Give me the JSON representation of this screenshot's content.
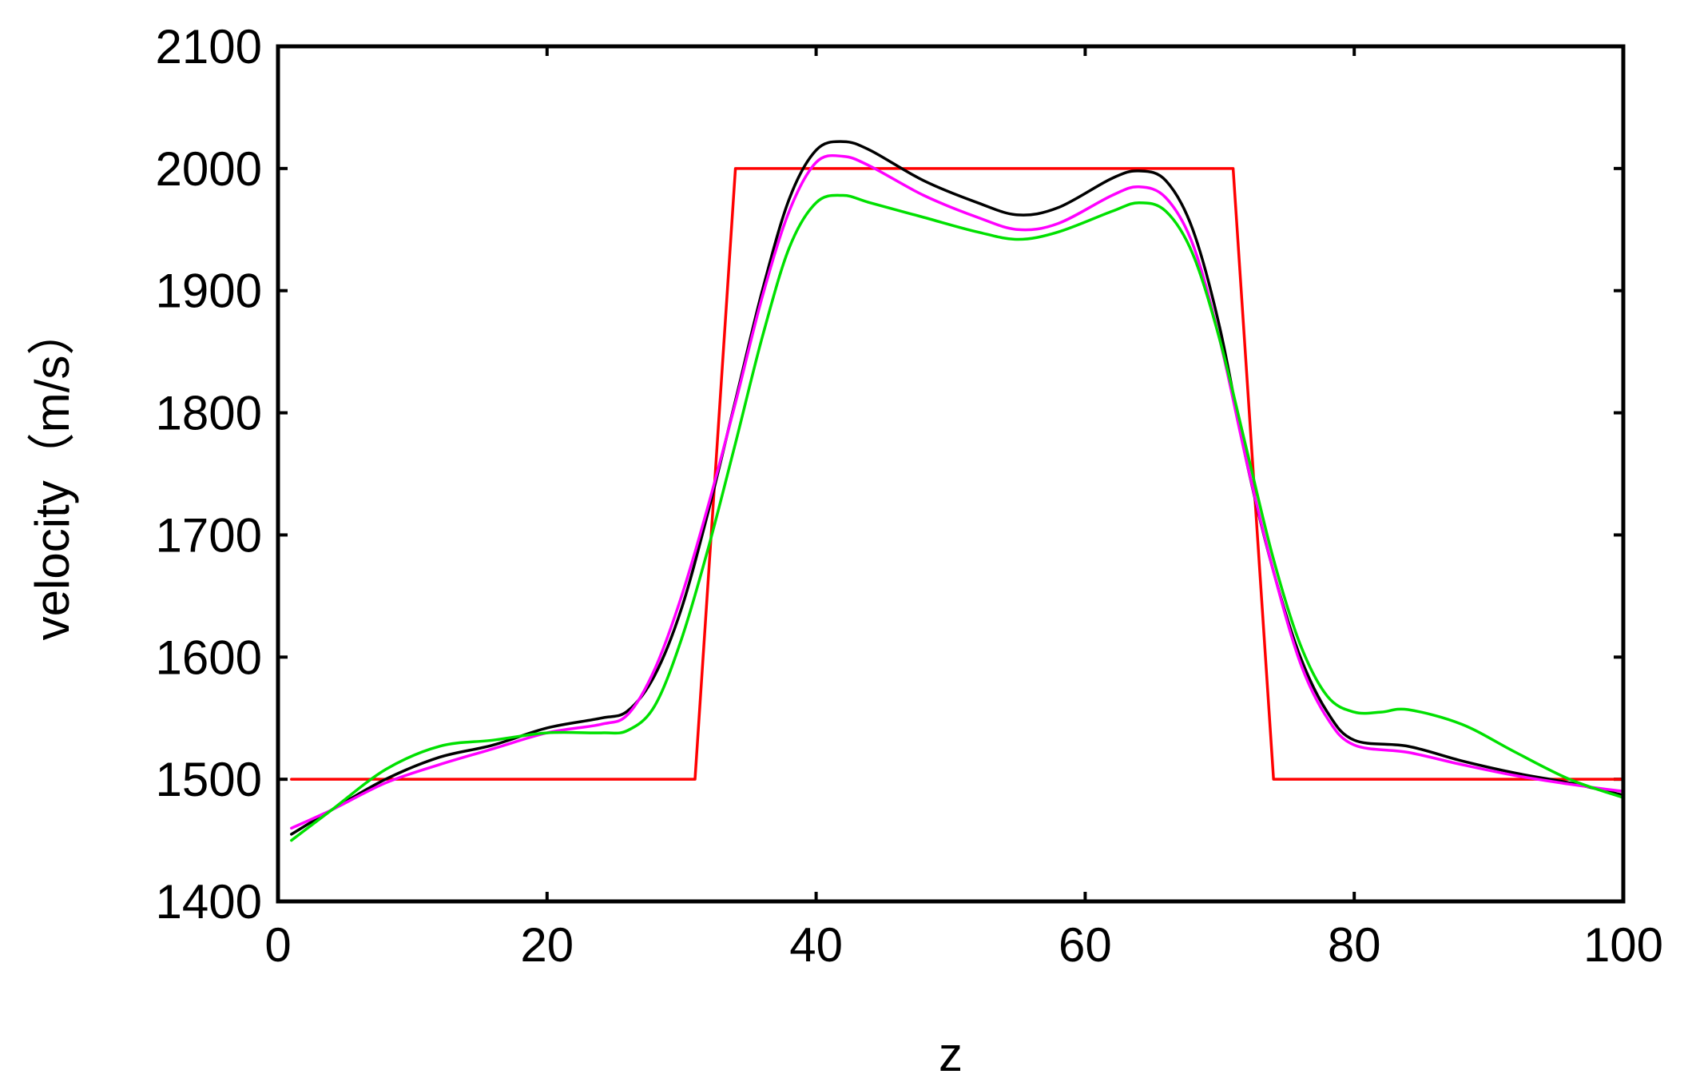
{
  "chart_data": {
    "type": "line",
    "title": "",
    "xlabel": "z",
    "ylabel": "velocity（m/s）",
    "xlim": [
      0,
      100
    ],
    "ylim": [
      1400,
      2100
    ],
    "xticks": [
      0,
      20,
      40,
      60,
      80,
      100
    ],
    "yticks": [
      1400,
      1500,
      1600,
      1700,
      1800,
      1900,
      2000,
      2100
    ],
    "grid": false,
    "legend": "none",
    "series": [
      {
        "color": "#ff0000",
        "x": [
          1,
          31,
          34,
          71,
          74,
          100
        ],
        "y": [
          1500,
          1500,
          2000,
          2000,
          1500,
          1500
        ]
      },
      {
        "color": "#000000",
        "x": [
          1,
          4,
          8,
          12,
          16,
          20,
          24,
          26,
          28,
          30,
          32,
          34,
          36,
          38,
          40,
          42,
          44,
          48,
          52,
          55,
          58,
          62,
          64,
          66,
          68,
          70,
          72,
          74,
          76,
          78,
          80,
          84,
          88,
          92,
          96,
          100
        ],
        "y": [
          1455,
          1475,
          1500,
          1518,
          1528,
          1542,
          1550,
          1556,
          1585,
          1640,
          1720,
          1810,
          1900,
          1975,
          2015,
          2022,
          2015,
          1990,
          1972,
          1962,
          1968,
          1992,
          1998,
          1990,
          1950,
          1870,
          1760,
          1670,
          1600,
          1555,
          1532,
          1527,
          1515,
          1505,
          1497,
          1487
        ]
      },
      {
        "color": "#ff00ff",
        "x": [
          1,
          4,
          8,
          12,
          16,
          20,
          24,
          26,
          28,
          30,
          32,
          34,
          36,
          38,
          40,
          42,
          44,
          48,
          52,
          55,
          58,
          62,
          64,
          66,
          68,
          70,
          72,
          74,
          76,
          78,
          80,
          84,
          88,
          92,
          96,
          100
        ],
        "y": [
          1460,
          1475,
          1497,
          1512,
          1525,
          1538,
          1545,
          1553,
          1590,
          1650,
          1725,
          1808,
          1895,
          1965,
          2005,
          2010,
          2002,
          1978,
          1960,
          1950,
          1955,
          1978,
          1985,
          1976,
          1938,
          1860,
          1760,
          1670,
          1595,
          1550,
          1528,
          1522,
          1512,
          1503,
          1496,
          1490
        ]
      },
      {
        "color": "#00e000",
        "x": [
          1,
          4,
          8,
          12,
          16,
          20,
          24,
          26,
          28,
          30,
          32,
          34,
          36,
          38,
          40,
          42,
          44,
          48,
          52,
          55,
          58,
          62,
          64,
          66,
          68,
          70,
          72,
          74,
          76,
          78,
          80,
          82,
          84,
          88,
          92,
          96,
          100
        ],
        "y": [
          1450,
          1475,
          1508,
          1527,
          1532,
          1538,
          1538,
          1540,
          1560,
          1615,
          1690,
          1775,
          1862,
          1935,
          1972,
          1978,
          1972,
          1960,
          1948,
          1942,
          1948,
          1965,
          1972,
          1965,
          1930,
          1860,
          1770,
          1680,
          1610,
          1568,
          1555,
          1555,
          1557,
          1545,
          1522,
          1500,
          1485
        ]
      }
    ]
  }
}
